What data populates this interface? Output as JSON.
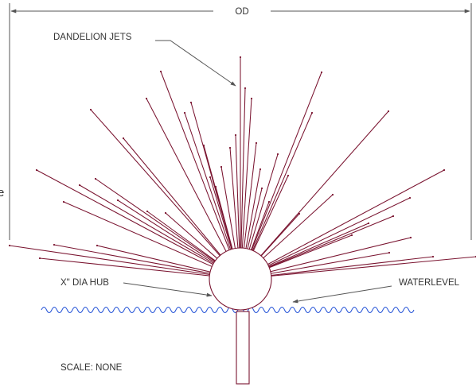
{
  "labels": {
    "od": "OD",
    "dandelion_jets": "DANDELION JETS",
    "hub": "X\" DIA HUB",
    "waterlevel": "WATERLEVEL",
    "scale": "SCALE: NONE",
    "edge_fragment": "e"
  },
  "colors": {
    "jets": "#7a1430",
    "water": "#1f4fd6",
    "dimension_lines": "#555555",
    "text": "#333333"
  }
}
